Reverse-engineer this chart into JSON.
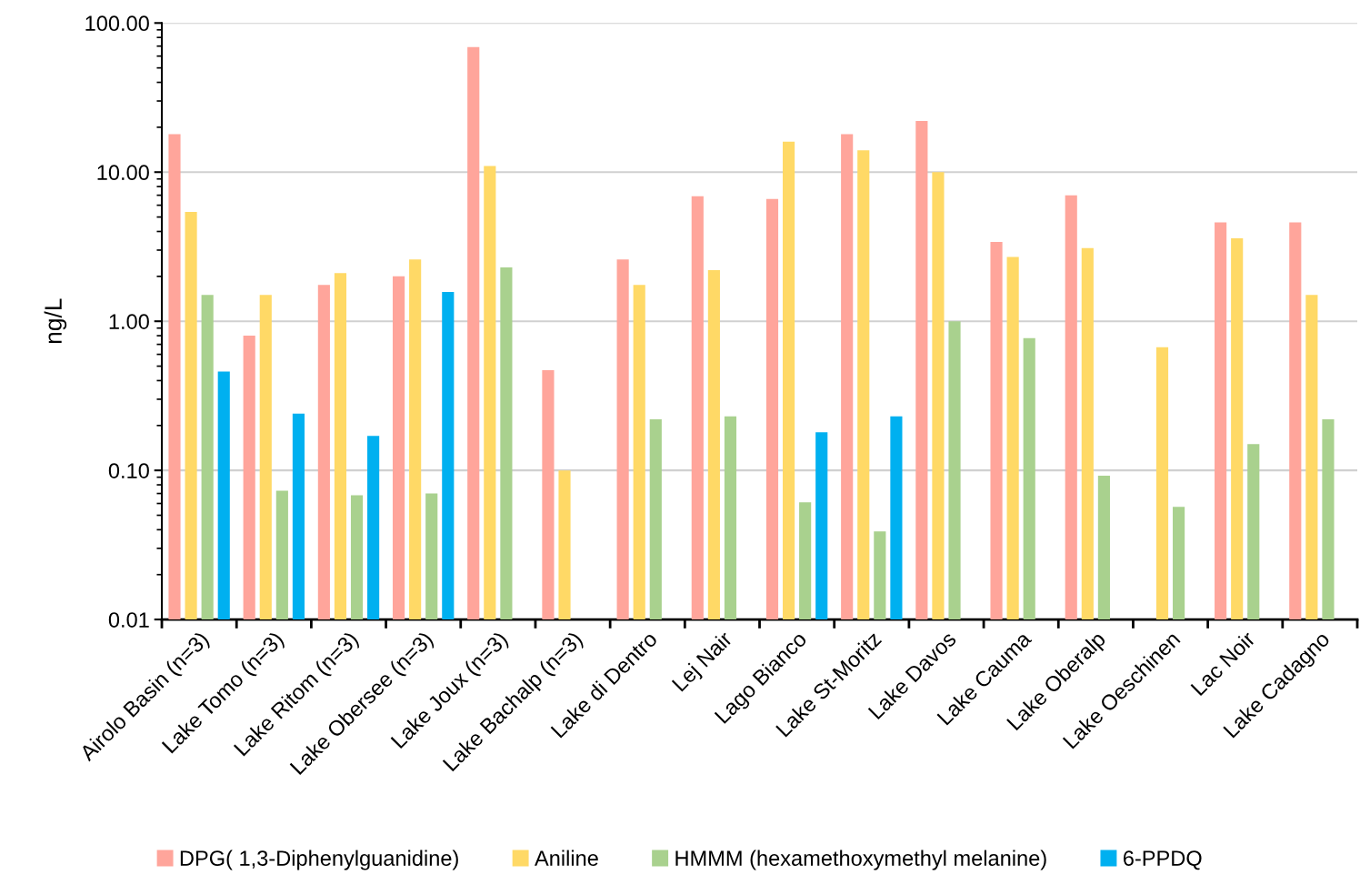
{
  "chart_data": {
    "type": "bar",
    "ylabel": "ng/L",
    "log": "y",
    "categories": [
      "Airolo Basin (n=3)",
      "Lake Tomo (n=3)",
      "Lake Ritom (n=3)",
      "Lake Obersee (n=3)",
      "Lake Joux (n=3)",
      "Lake Bachalp (n=3)",
      "Lake di Dentro",
      "Lej Nair",
      "Lago Bianco",
      "Lake St-Moritz",
      "Lake Davos",
      "Lake Cauma",
      "Lake Oberalp",
      "Lake Oeschinen",
      "Lac Noir",
      "Lake Cadagno"
    ],
    "series": [
      {
        "name": "DPG( 1,3-Diphenylguanidine)",
        "color": "#ffa59b",
        "values": [
          18,
          0.8,
          1.75,
          2.0,
          69,
          0.47,
          2.6,
          6.9,
          6.6,
          18,
          22,
          3.4,
          7.0,
          null,
          4.6,
          4.6
        ]
      },
      {
        "name": "Aniline",
        "color": "#ffd966",
        "values": [
          5.4,
          1.5,
          2.1,
          2.6,
          11,
          0.1,
          1.75,
          2.2,
          16,
          14,
          10,
          2.7,
          3.1,
          0.67,
          3.6,
          1.5
        ]
      },
      {
        "name": "HMMM (hexamethoxymethyl melanine)",
        "color": "#a9d18e",
        "values": [
          1.5,
          0.073,
          0.068,
          0.07,
          2.3,
          null,
          0.22,
          0.23,
          0.061,
          0.039,
          1.0,
          0.77,
          0.092,
          0.057,
          0.15,
          0.22
        ]
      },
      {
        "name": "6-PPDQ",
        "color": "#00b0f0",
        "values": [
          0.46,
          0.24,
          0.17,
          1.57,
          null,
          null,
          null,
          null,
          0.18,
          0.23,
          null,
          null,
          null,
          null,
          null,
          null
        ]
      }
    ],
    "ylim": [
      0.01,
      100
    ],
    "yticks": [
      {
        "value": 0.01,
        "label": "0.01"
      },
      {
        "value": 0.1,
        "label": "0.10"
      },
      {
        "value": 1,
        "label": "1.00"
      },
      {
        "value": 10,
        "label": "10.00"
      },
      {
        "value": 100,
        "label": "100.00"
      }
    ],
    "grid": "y",
    "legend": "bottom"
  }
}
